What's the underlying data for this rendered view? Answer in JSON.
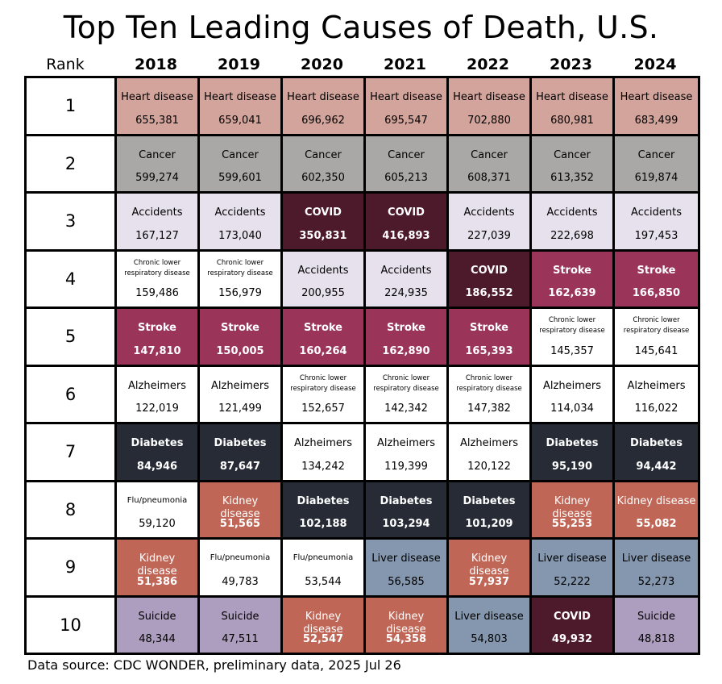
{
  "title": "Top Ten Leading Causes of Death, U.S.",
  "source": "Data source: CDC WONDER, preliminary data, 2025 Jul 26",
  "colors": {
    "Heart disease": {
      "bg": "#d3a49c",
      "fg": "#000000"
    },
    "Cancer": {
      "bg": "#a9a8a6",
      "fg": "#000000"
    },
    "Accidents": {
      "bg": "#e6e1ec",
      "fg": "#000000"
    },
    "COVID": {
      "bg": "#4d1a2c",
      "fg": "#ffffff"
    },
    "Chronic lower respiratory disease": {
      "bg": "#ffffff",
      "fg": "#000000"
    },
    "Stroke": {
      "bg": "#9a3458",
      "fg": "#ffffff"
    },
    "Alzheimers": {
      "bg": "#ffffff",
      "fg": "#000000"
    },
    "Diabetes": {
      "bg": "#262b36",
      "fg": "#ffffff"
    },
    "Flu/pneumonia": {
      "bg": "#ffffff",
      "fg": "#000000"
    },
    "Kidney disease": {
      "bg": "#bf6656",
      "fg": "#ffffff"
    },
    "Liver disease": {
      "bg": "#8497ae",
      "fg": "#000000"
    },
    "Suicide": {
      "bg": "#ad9dbe",
      "fg": "#000000"
    }
  },
  "chart_data": {
    "type": "table",
    "title": "Top Ten Leading Causes of Death, U.S.",
    "rank_label": "Rank",
    "years": [
      "2018",
      "2019",
      "2020",
      "2021",
      "2022",
      "2023",
      "2024"
    ],
    "ranks": [
      "1",
      "2",
      "3",
      "4",
      "5",
      "6",
      "7",
      "8",
      "9",
      "10"
    ],
    "rows": [
      [
        [
          "Heart disease",
          "655,381"
        ],
        [
          "Heart disease",
          "659,041"
        ],
        [
          "Heart disease",
          "696,962"
        ],
        [
          "Heart disease",
          "695,547"
        ],
        [
          "Heart disease",
          "702,880"
        ],
        [
          "Heart disease",
          "680,981"
        ],
        [
          "Heart disease",
          "683,499"
        ]
      ],
      [
        [
          "Cancer",
          "599,274"
        ],
        [
          "Cancer",
          "599,601"
        ],
        [
          "Cancer",
          "602,350"
        ],
        [
          "Cancer",
          "605,213"
        ],
        [
          "Cancer",
          "608,371"
        ],
        [
          "Cancer",
          "613,352"
        ],
        [
          "Cancer",
          "619,874"
        ]
      ],
      [
        [
          "Accidents",
          "167,127"
        ],
        [
          "Accidents",
          "173,040"
        ],
        [
          "COVID",
          "350,831"
        ],
        [
          "COVID",
          "416,893"
        ],
        [
          "Accidents",
          "227,039"
        ],
        [
          "Accidents",
          "222,698"
        ],
        [
          "Accidents",
          "197,453"
        ]
      ],
      [
        [
          "Chronic lower respiratory disease",
          "159,486"
        ],
        [
          "Chronic lower respiratory disease",
          "156,979"
        ],
        [
          "Accidents",
          "200,955"
        ],
        [
          "Accidents",
          "224,935"
        ],
        [
          "COVID",
          "186,552"
        ],
        [
          "Stroke",
          "162,639"
        ],
        [
          "Stroke",
          "166,850"
        ]
      ],
      [
        [
          "Stroke",
          "147,810"
        ],
        [
          "Stroke",
          "150,005"
        ],
        [
          "Stroke",
          "160,264"
        ],
        [
          "Stroke",
          "162,890"
        ],
        [
          "Stroke",
          "165,393"
        ],
        [
          "Chronic lower respiratory disease",
          "145,357"
        ],
        [
          "Chronic lower respiratory disease",
          "145,641"
        ]
      ],
      [
        [
          "Alzheimers",
          "122,019"
        ],
        [
          "Alzheimers",
          "121,499"
        ],
        [
          "Chronic lower respiratory disease",
          "152,657"
        ],
        [
          "Chronic lower respiratory disease",
          "142,342"
        ],
        [
          "Chronic lower respiratory disease",
          "147,382"
        ],
        [
          "Alzheimers",
          "114,034"
        ],
        [
          "Alzheimers",
          "116,022"
        ]
      ],
      [
        [
          "Diabetes",
          "84,946"
        ],
        [
          "Diabetes",
          "87,647"
        ],
        [
          "Alzheimers",
          "134,242"
        ],
        [
          "Alzheimers",
          "119,399"
        ],
        [
          "Alzheimers",
          "120,122"
        ],
        [
          "Diabetes",
          "95,190"
        ],
        [
          "Diabetes",
          "94,442"
        ]
      ],
      [
        [
          "Flu/pneumonia",
          "59,120"
        ],
        [
          "Kidney disease",
          "51,565"
        ],
        [
          "Diabetes",
          "102,188"
        ],
        [
          "Diabetes",
          "103,294"
        ],
        [
          "Diabetes",
          "101,209"
        ],
        [
          "Kidney disease",
          "55,253"
        ],
        [
          "Kidney disease",
          "55,082"
        ]
      ],
      [
        [
          "Kidney disease",
          "51,386"
        ],
        [
          "Flu/pneumonia",
          "49,783"
        ],
        [
          "Flu/pneumonia",
          "53,544"
        ],
        [
          "Liver disease",
          "56,585"
        ],
        [
          "Kidney disease",
          "57,937"
        ],
        [
          "Liver disease",
          "52,222"
        ],
        [
          "Liver disease",
          "52,273"
        ]
      ],
      [
        [
          "Suicide",
          "48,344"
        ],
        [
          "Suicide",
          "47,511"
        ],
        [
          "Kidney disease",
          "52,547"
        ],
        [
          "Kidney disease",
          "54,358"
        ],
        [
          "Liver disease",
          "54,803"
        ],
        [
          "COVID",
          "49,932"
        ],
        [
          "Suicide",
          "48,818"
        ]
      ]
    ]
  }
}
